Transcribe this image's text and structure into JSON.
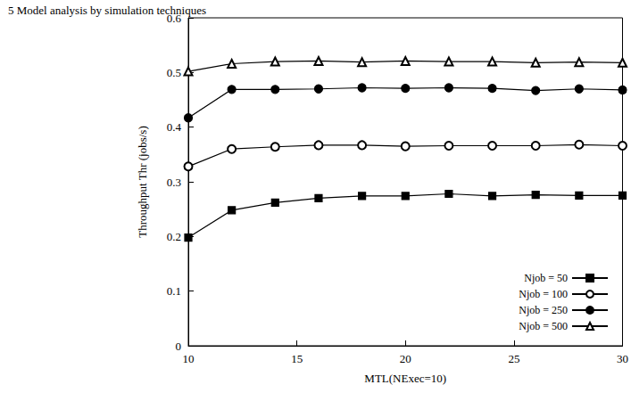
{
  "chart_data": {
    "type": "line",
    "title": "5 Model analysis by simulation techniques",
    "x_label": "MTL(NExec=10)",
    "y_label": "Throughput Thr (jobs/s)",
    "x": [
      10,
      12,
      14,
      16,
      18,
      20,
      22,
      24,
      26,
      28,
      30
    ],
    "series": [
      {
        "name": "Njob = 50",
        "color": "#000000",
        "marker": "square",
        "values": [
          0.198,
          0.248,
          0.262,
          0.27,
          0.274,
          0.274,
          0.278,
          0.274,
          0.276,
          0.275,
          0.275
        ]
      },
      {
        "name": "Njob = 100",
        "color": "#000000",
        "marker": "circle_open",
        "values": [
          0.328,
          0.36,
          0.364,
          0.367,
          0.367,
          0.365,
          0.366,
          0.366,
          0.366,
          0.368,
          0.366
        ]
      },
      {
        "name": "Njob = 250",
        "color": "#000000",
        "marker": "circle",
        "values": [
          0.417,
          0.469,
          0.469,
          0.47,
          0.472,
          0.471,
          0.472,
          0.471,
          0.467,
          0.47,
          0.468
        ]
      },
      {
        "name": "Njob = 500",
        "color": "#000000",
        "marker": "triangle_open",
        "values": [
          0.502,
          0.516,
          0.52,
          0.521,
          0.519,
          0.521,
          0.52,
          0.52,
          0.518,
          0.519,
          0.518
        ]
      }
    ],
    "xlim": [
      10,
      30
    ],
    "xticks": [
      10,
      15,
      20,
      25,
      30
    ],
    "ylim": [
      0,
      0.6
    ],
    "yticks": [
      0,
      0.1,
      0.2,
      0.3,
      0.4,
      0.5,
      0.6
    ],
    "grid": false,
    "legend": "lower right"
  }
}
